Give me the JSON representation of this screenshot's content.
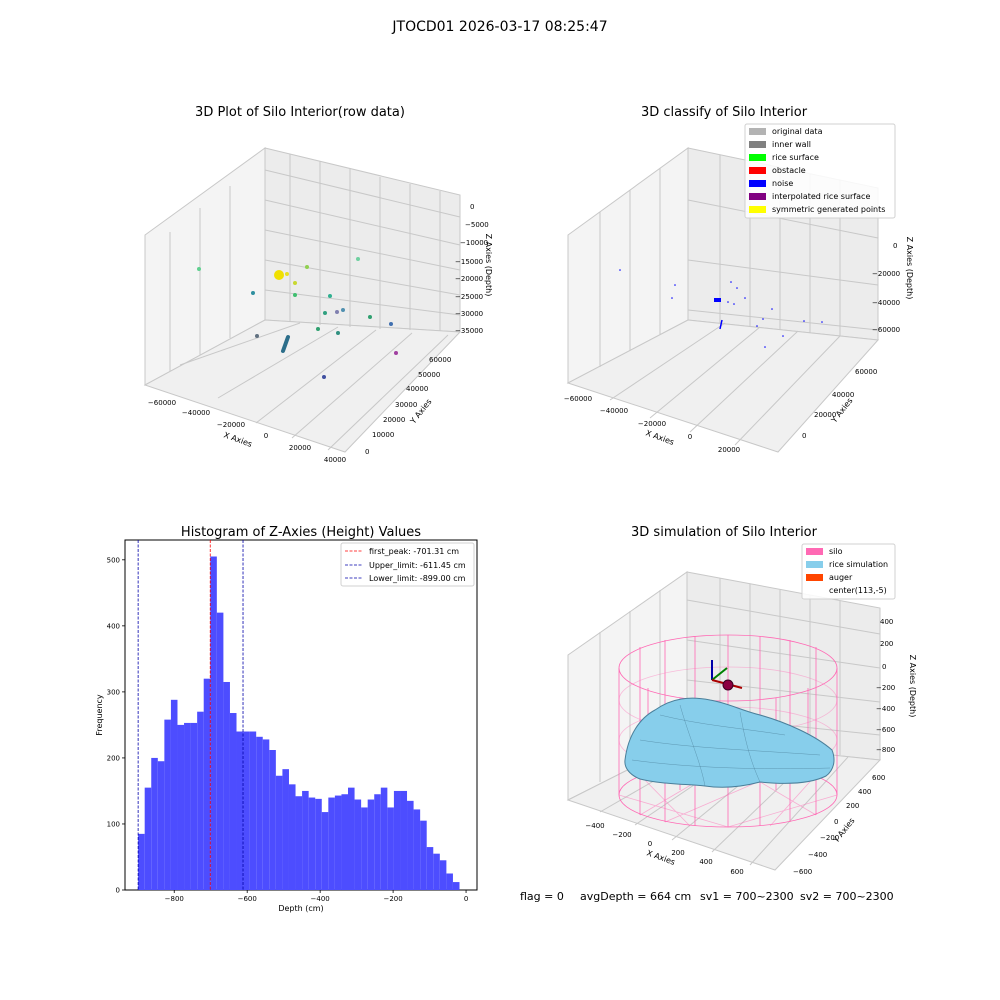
{
  "figure": {
    "suptitle": "JTOCD01 2026-03-17 08:25:47",
    "footer": {
      "flag": "flag = 0",
      "avg": "avgDepth = 664 cm",
      "sv1": "sv1 = 700~2300",
      "sv2": "sv2 = 700~2300"
    }
  },
  "chart_data": [
    {
      "type": "scatter",
      "title": "3D Plot of Silo Interior(row data)",
      "xlabel": "X Axies",
      "ylabel": "Y Axies",
      "zlabel": "Z Axies (Depth)",
      "xticks": [
        "−60000",
        "−40000",
        "−20000",
        "0",
        "20000",
        "40000"
      ],
      "yticks": [
        "0",
        "10000",
        "20000",
        "30000",
        "40000",
        "50000",
        "60000"
      ],
      "zticks": [
        "0",
        "−5000",
        "−10000",
        "−15000",
        "−20000",
        "−25000",
        "−30000",
        "−35000"
      ]
    },
    {
      "type": "scatter",
      "title": "3D classify of Silo Interior",
      "xlabel": "X Axies",
      "ylabel": "Y Axies",
      "zlabel": "Z Axies (Depth)",
      "xticks": [
        "−60000",
        "−40000",
        "−20000",
        "0",
        "20000"
      ],
      "yticks": [
        "0",
        "20000",
        "40000",
        "60000"
      ],
      "zticks": [
        "0",
        "−20000",
        "−40000",
        "−60000"
      ],
      "legend": {
        "position": "upper-right",
        "items": [
          {
            "label": "original data",
            "color": "#b3b3b3"
          },
          {
            "label": "inner wall",
            "color": "#808080"
          },
          {
            "label": "rice surface",
            "color": "#00ff00"
          },
          {
            "label": "obstacle",
            "color": "#ff0000"
          },
          {
            "label": "noise",
            "color": "#0000ff"
          },
          {
            "label": "interpolated rice surface",
            "color": "#800080"
          },
          {
            "label": "symmetric generated points",
            "color": "#ffff00"
          }
        ]
      }
    },
    {
      "type": "bar",
      "title": "Histogram of Z-Axies (Height) Values",
      "xlabel": "Depth (cm)",
      "ylabel": "Frequency",
      "bar_color": "#4d4dff",
      "bin_start": -899,
      "bin_width": 17.98,
      "values": [
        85,
        155,
        200,
        195,
        258,
        288,
        250,
        253,
        253,
        270,
        320,
        505,
        420,
        315,
        268,
        240,
        240,
        240,
        232,
        228,
        212,
        173,
        183,
        160,
        142,
        150,
        140,
        138,
        118,
        140,
        143,
        145,
        155,
        137,
        125,
        137,
        145,
        155,
        125,
        150,
        150,
        135,
        122,
        105,
        65,
        55,
        45,
        25,
        12
      ],
      "xlim": [
        -935,
        30
      ],
      "ylim": [
        0,
        530
      ],
      "xticks": [
        "−800",
        "−600",
        "−400",
        "−200",
        "0"
      ],
      "yticks": [
        "0",
        "100",
        "200",
        "300",
        "400",
        "500"
      ],
      "lines": [
        {
          "label": "first_peak: -701.31 cm",
          "x": -701.31,
          "color": "#ff0000"
        },
        {
          "label": "Upper_limit: -611.45 cm",
          "x": -611.45,
          "color": "#0000aa"
        },
        {
          "label": "Lower_limit: -899.00 cm",
          "x": -899.0,
          "color": "#0000aa"
        }
      ],
      "legend": "upper-right"
    },
    {
      "type": "area",
      "title": "3D simulation of Silo Interior",
      "xlabel": "X Axies",
      "ylabel": "Y Axies",
      "zlabel": "Z Axies (Depth)",
      "xticks": [
        "−400",
        "−200",
        "0",
        "200",
        "400",
        "600"
      ],
      "yticks": [
        "−600",
        "−400",
        "−200",
        "0",
        "200",
        "400",
        "600"
      ],
      "zticks": [
        "400",
        "200",
        "0",
        "−200",
        "−400",
        "−600",
        "−800"
      ],
      "legend": {
        "position": "upper-right",
        "items": [
          {
            "label": "silo",
            "color": "#ff69b4"
          },
          {
            "label": "rice simulation",
            "color": "#87ceeb"
          },
          {
            "label": "auger",
            "color": "#ff4500"
          },
          {
            "label": "center(113,-5)",
            "color": "#ffffff"
          }
        ]
      }
    }
  ]
}
